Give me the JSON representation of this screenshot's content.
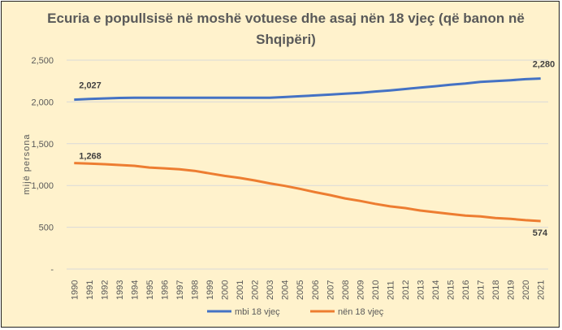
{
  "chart_data": {
    "type": "line",
    "title": "Ecuria e popullsisë në moshë votuese dhe asaj nën 18 vjeç (që banon në Shqipëri)",
    "xlabel": "",
    "ylabel": "mijë persona",
    "ylim": [
      0,
      2500
    ],
    "yticks": [
      0,
      500,
      1000,
      1500,
      2000,
      2500
    ],
    "ytick_labels": [
      "-",
      "500",
      "1,000",
      "1,500",
      "2,000",
      "2,500"
    ],
    "grid": true,
    "legend": "bottom",
    "categories": [
      "1990",
      "1991",
      "1992",
      "1993",
      "1994",
      "1995",
      "1996",
      "1997",
      "1998",
      "1999",
      "2000",
      "2001",
      "2002",
      "2003",
      "2004",
      "2005",
      "2006",
      "2007",
      "2008",
      "2009",
      "2010",
      "2011",
      "2012",
      "2013",
      "2014",
      "2015",
      "2016",
      "2017",
      "2018",
      "2019",
      "2020",
      "2021"
    ],
    "series": [
      {
        "name": "mbi 18 vjeç",
        "color": "#4472c4",
        "values": [
          2027,
          2035,
          2042,
          2048,
          2050,
          2050,
          2050,
          2050,
          2050,
          2050,
          2050,
          2050,
          2050,
          2050,
          2058,
          2068,
          2078,
          2088,
          2098,
          2108,
          2125,
          2138,
          2155,
          2172,
          2188,
          2205,
          2220,
          2240,
          2250,
          2260,
          2272,
          2280
        ],
        "labels": [
          {
            "index": 0,
            "text": "2,027"
          },
          {
            "index": 31,
            "text": "2,280"
          }
        ]
      },
      {
        "name": "nën 18 vjeç",
        "color": "#ed7d31",
        "values": [
          1268,
          1262,
          1255,
          1245,
          1235,
          1215,
          1205,
          1195,
          1175,
          1145,
          1115,
          1090,
          1060,
          1025,
          995,
          960,
          920,
          885,
          845,
          815,
          780,
          750,
          730,
          700,
          680,
          660,
          640,
          630,
          610,
          600,
          585,
          574
        ],
        "labels": [
          {
            "index": 0,
            "text": "1,268"
          },
          {
            "index": 31,
            "text": "574"
          }
        ]
      }
    ]
  }
}
